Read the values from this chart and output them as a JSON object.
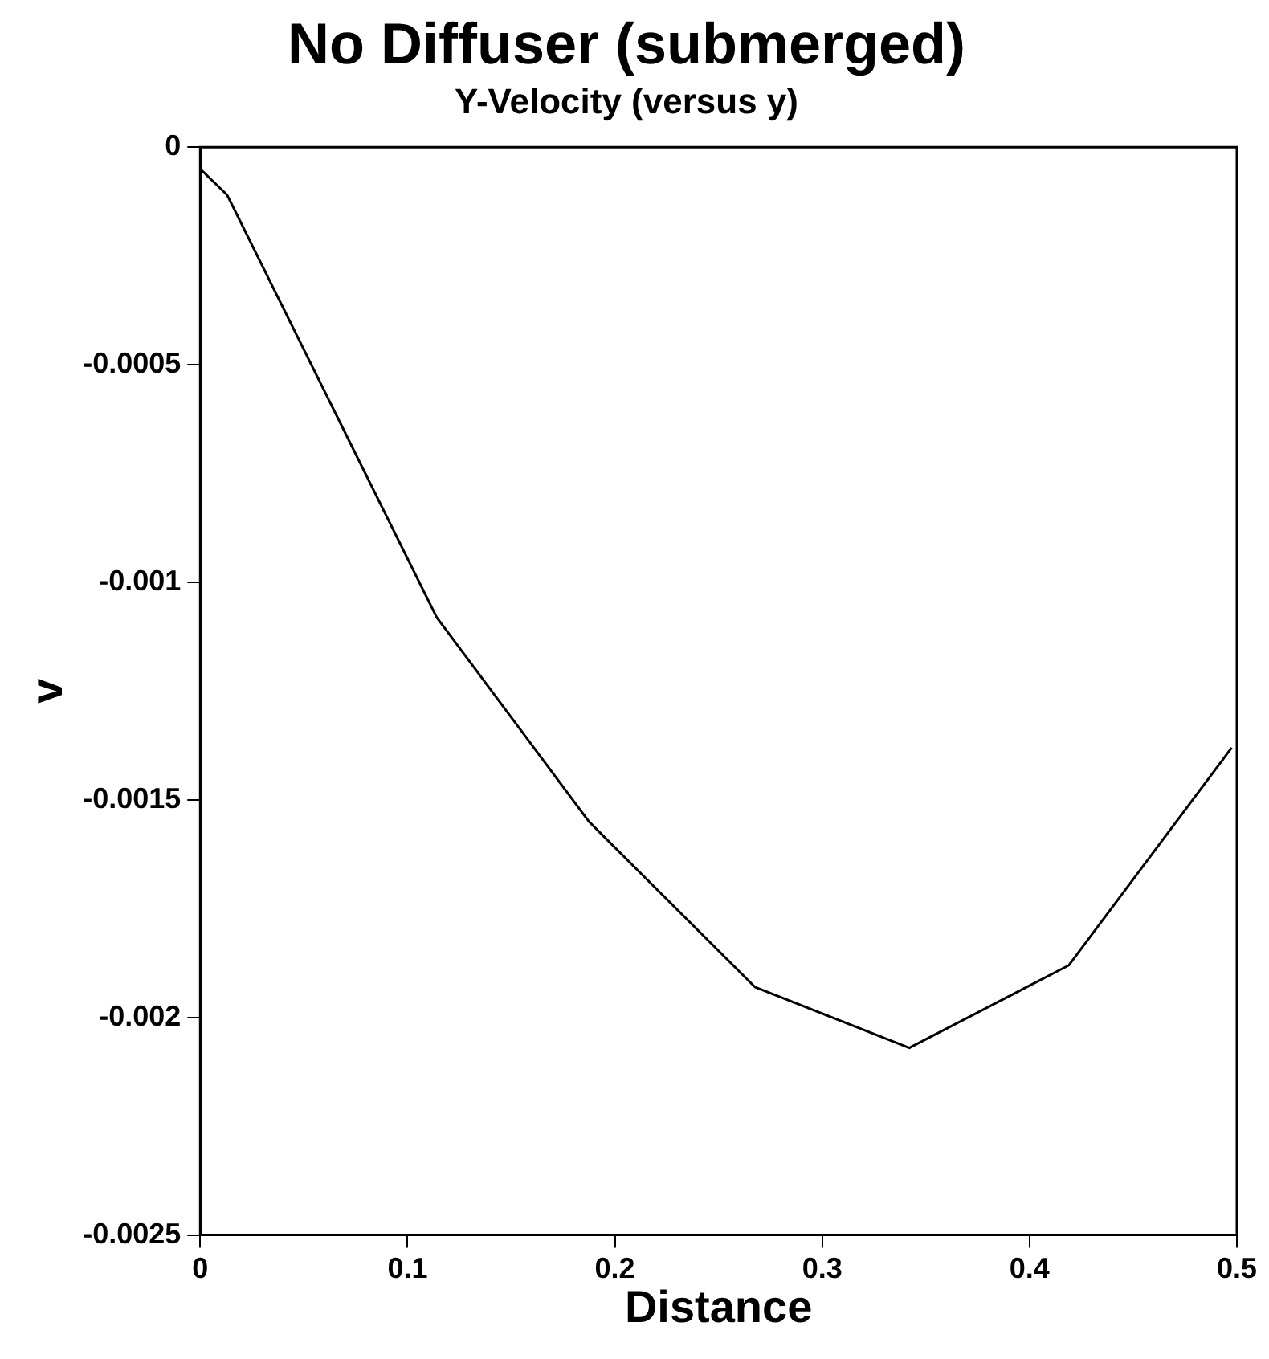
{
  "chart_data": {
    "type": "line",
    "title": "No Diffuser (submerged)",
    "subtitle": "Y-Velocity (versus y)",
    "xlabel": "Distance",
    "ylabel": "v",
    "x": [
      0,
      0.013,
      0.114,
      0.1875,
      0.2675,
      0.342,
      0.419,
      0.4975
    ],
    "series": [
      {
        "color": "#000000",
        "values": [
          -5e-05,
          -0.00011,
          -0.00108,
          -0.00155,
          -0.00193,
          -0.00207,
          -0.00188,
          -0.00138
        ]
      }
    ],
    "xlim": [
      0,
      0.5
    ],
    "xticks": [
      0,
      0.1,
      0.2,
      0.3,
      0.4,
      0.5
    ],
    "ylim": [
      -0.0025,
      0
    ],
    "yticks": [
      -0.0025,
      -0.002,
      -0.0015,
      -0.001,
      -0.0005,
      0
    ],
    "grid": false,
    "legend": false,
    "marker": "none",
    "line_style": "solid"
  }
}
